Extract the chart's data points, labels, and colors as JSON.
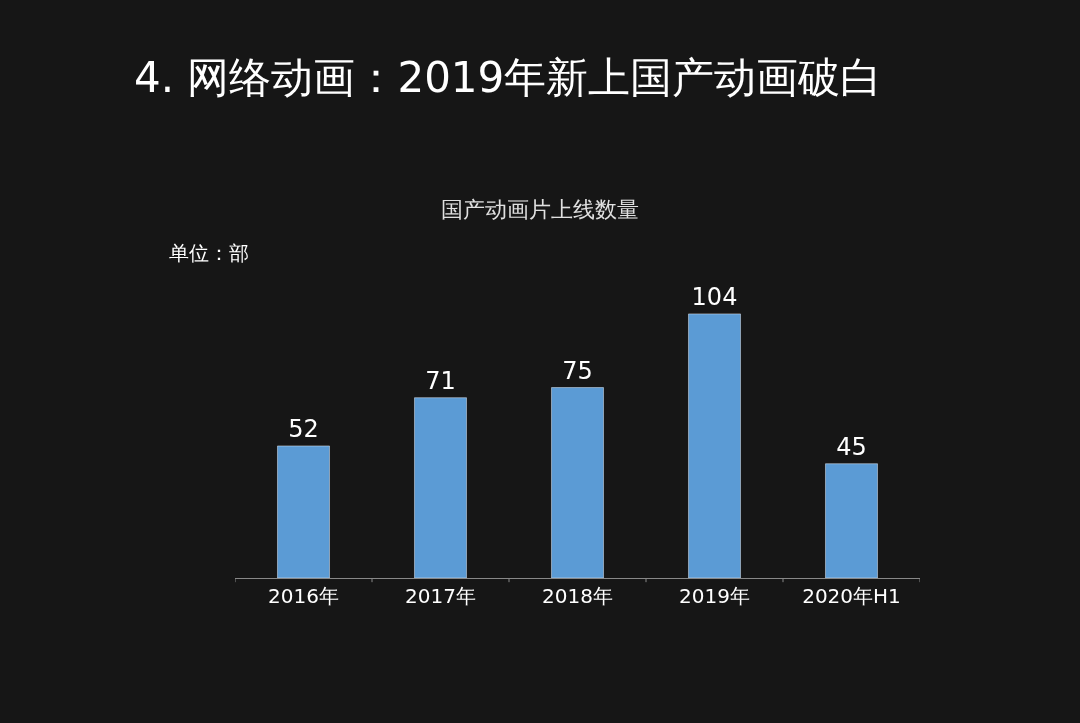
{
  "chart_data": {
    "type": "bar",
    "title": "4. 网络动画：2019年新上国产动画破白",
    "subtitle": "国产动画片上线数量",
    "annotations": [
      "单位：部"
    ],
    "categories": [
      "2016年",
      "2017年",
      "2018年",
      "2019年",
      "2020年H1"
    ],
    "values": [
      52,
      71,
      75,
      104,
      45
    ],
    "color": "#5b9bd5",
    "data_labels": true,
    "legend": false
  }
}
